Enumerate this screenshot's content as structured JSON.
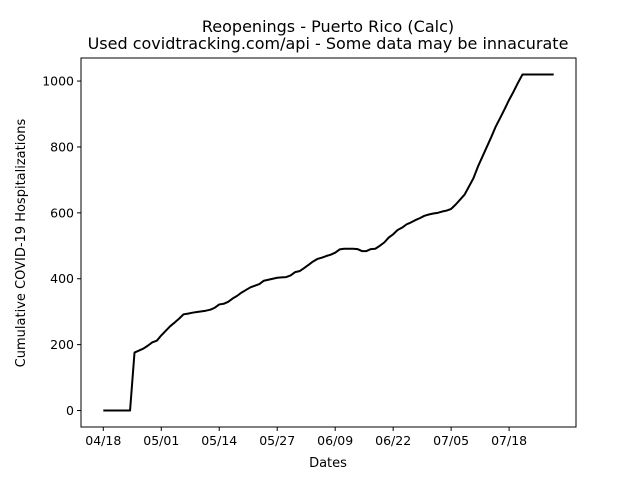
{
  "chart_data": {
    "type": "line",
    "title": "Reopenings - Puerto Rico (Calc)",
    "subtitle": "Used covidtracking.com/api - Some data may be innacurate",
    "xlabel": "Dates",
    "ylabel": "Cumulative COVID-19 Hospitalizations",
    "x_tick_labels": [
      "04/18",
      "05/01",
      "05/14",
      "05/27",
      "06/09",
      "06/22",
      "07/05",
      "07/18"
    ],
    "x_tick_values": [
      0,
      13,
      26,
      39,
      52,
      65,
      78,
      91
    ],
    "y_ticks": [
      0,
      200,
      400,
      600,
      800,
      1000
    ],
    "xlim": [
      -5,
      106
    ],
    "ylim": [
      -50,
      1070
    ],
    "grid": false,
    "series": [
      {
        "color": "#000000",
        "x": [
          0,
          1,
          2,
          3,
          4,
          5,
          6,
          7,
          8,
          9,
          10,
          11,
          12,
          13,
          14,
          15,
          16,
          17,
          18,
          19,
          20,
          21,
          22,
          23,
          24,
          25,
          26,
          27,
          28,
          29,
          30,
          31,
          32,
          33,
          34,
          35,
          36,
          37,
          38,
          39,
          40,
          41,
          42,
          43,
          44,
          45,
          46,
          47,
          48,
          49,
          50,
          51,
          52,
          53,
          54,
          55,
          56,
          57,
          58,
          59,
          60,
          61,
          62,
          63,
          64,
          65,
          66,
          67,
          68,
          69,
          70,
          71,
          72,
          73,
          74,
          75,
          76,
          77,
          78,
          79,
          80,
          81,
          82,
          83,
          84,
          85,
          86,
          87,
          88,
          89,
          90,
          91,
          92,
          93,
          94,
          95,
          96,
          97,
          98,
          99,
          100,
          101
        ],
        "values": [
          0,
          0,
          0,
          0,
          0,
          0,
          0,
          176,
          182,
          188,
          197,
          207,
          212,
          228,
          242,
          256,
          267,
          279,
          292,
          294,
          297,
          299,
          301,
          303,
          306,
          312,
          322,
          324,
          330,
          340,
          348,
          358,
          366,
          374,
          379,
          384,
          394,
          397,
          400,
          403,
          404,
          405,
          410,
          420,
          423,
          432,
          442,
          452,
          460,
          464,
          469,
          473,
          479,
          489,
          491,
          491,
          491,
          490,
          484,
          484,
          490,
          491,
          500,
          510,
          525,
          535,
          548,
          555,
          565,
          571,
          578,
          584,
          591,
          595,
          598,
          600,
          604,
          607,
          612,
          625,
          640,
          655,
          680,
          705,
          740,
          770,
          800,
          830,
          862,
          888,
          915,
          943,
          968,
          995,
          1020,
          1020,
          1020,
          1020,
          1020,
          1020,
          1020,
          1020
        ]
      }
    ]
  }
}
